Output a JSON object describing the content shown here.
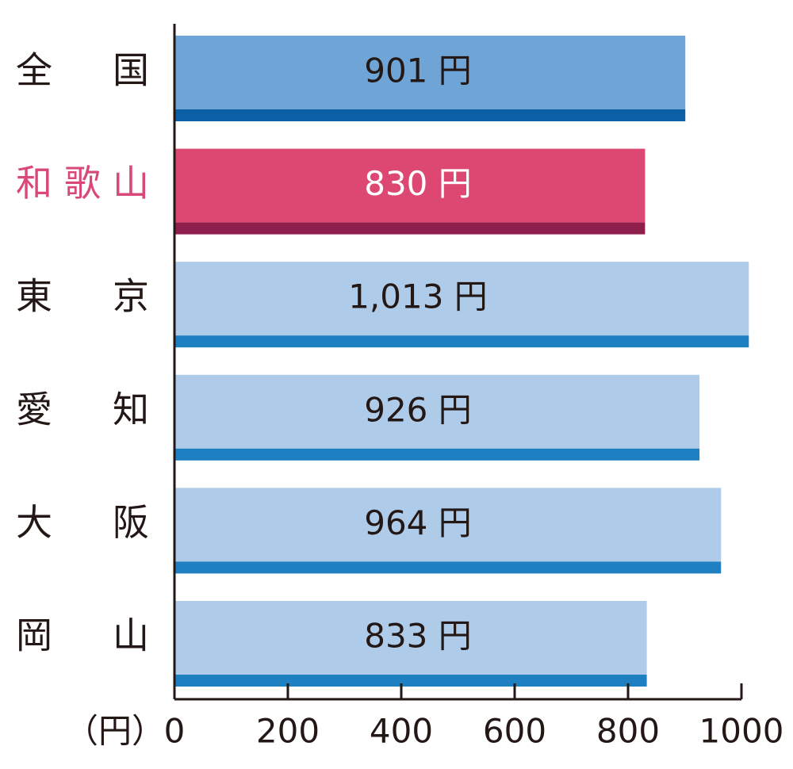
{
  "chart_data": {
    "type": "bar",
    "orientation": "horizontal",
    "categories": [
      "全　国",
      "和歌山",
      "東　京",
      "愛　知",
      "大　阪",
      "岡　山"
    ],
    "values": [
      901,
      830,
      1013,
      926,
      964,
      833
    ],
    "value_labels": [
      "901 円",
      "830 円",
      "1,013 円",
      "926 円",
      "964 円",
      "833 円"
    ],
    "colors": [
      "#6fa5d6",
      "#dc4872",
      "#aecbe9",
      "#aecbe9",
      "#aecbe9",
      "#aecbe9"
    ],
    "stripe_colors": [
      "#0b5fa5",
      "#8e1e4c",
      "#1e7fc1",
      "#1e7fc1",
      "#1e7fc1",
      "#1e7fc1"
    ],
    "label_colors": [
      "#231815",
      "#d9487a",
      "#231815",
      "#231815",
      "#231815",
      "#231815"
    ],
    "value_label_colors": [
      "#231815",
      "#ffffff",
      "#231815",
      "#231815",
      "#231815",
      "#231815"
    ],
    "x_label": "（円）",
    "xlim": [
      0,
      1000
    ],
    "xticks": [
      0,
      200,
      400,
      600,
      800,
      1000
    ]
  }
}
